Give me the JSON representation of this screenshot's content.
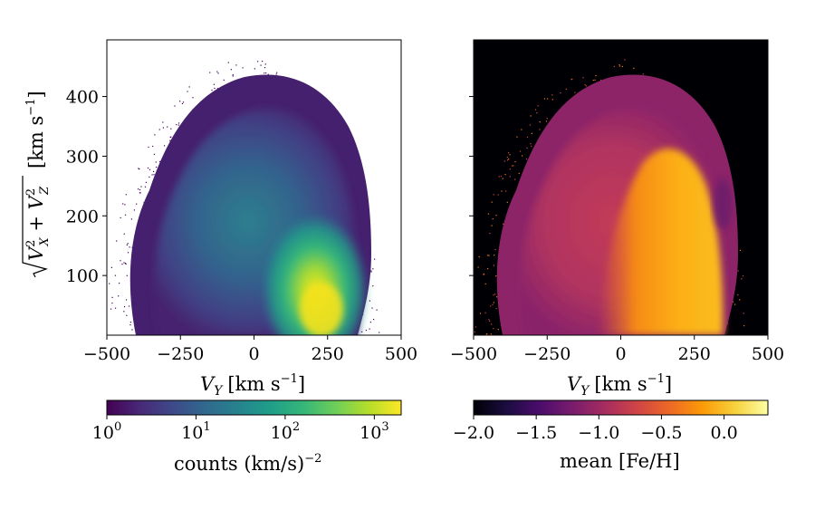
{
  "chart_data": [
    {
      "type": "heatmap",
      "panel": "left",
      "description_value": "2D histogram density",
      "xlabel": "V_Y [km s^-1]",
      "xlabel_main": "V",
      "xlabel_sub": "Y",
      "xlabel_units": "[km s",
      "xlabel_units_exp": "−1",
      "xlabel_units_close": "]",
      "ylabel": "sqrt(V_X^2 + V_Z^2) [km s^-1]",
      "ylabel_units": "[km s",
      "ylabel_units_exp": "−1",
      "ylabel_units_close": "]",
      "xlim": [
        -500,
        500
      ],
      "ylim": [
        0,
        495
      ],
      "xticks": [
        -500,
        -250,
        0,
        250,
        500
      ],
      "xtick_labels": [
        "−500",
        "−250",
        "0",
        "250",
        "500"
      ],
      "yticks": [
        100,
        200,
        300,
        400
      ],
      "ytick_labels": [
        "100",
        "200",
        "300",
        "400"
      ],
      "peak_counts_location": [
        230,
        50
      ],
      "colormap": "viridis",
      "colorbar": {
        "label": "counts (km/s)",
        "label_exp": "−2",
        "scale": "log",
        "range": [
          1,
          2000
        ],
        "tick_values": [
          1,
          10,
          100,
          1000
        ],
        "tick_base": "10",
        "tick_exponents": [
          "0",
          "1",
          "2",
          "3"
        ]
      }
    },
    {
      "type": "heatmap",
      "panel": "right",
      "description_value": "mean metallicity per bin",
      "xlabel_main": "V",
      "xlabel_sub": "Y",
      "xlabel_units": "[km s",
      "xlabel_units_exp": "−1",
      "xlabel_units_close": "]",
      "xlim": [
        -500,
        500
      ],
      "ylim": [
        0,
        495
      ],
      "xticks": [
        -500,
        -250,
        0,
        250,
        500
      ],
      "xtick_labels": [
        "−500",
        "−250",
        "0",
        "250",
        "500"
      ],
      "yticks": [
        100,
        200,
        300,
        400
      ],
      "colormap": "inferno",
      "background_color": "#000004",
      "colorbar": {
        "label": "mean [Fe/H]",
        "scale": "linear",
        "range": [
          -2.0,
          0.35
        ],
        "tick_values": [
          -2.0,
          -1.5,
          -1.0,
          -0.5,
          0.0
        ],
        "tick_labels": [
          "−2.0",
          "−1.5",
          "−1.0",
          "−0.5",
          "0.0"
        ]
      }
    }
  ],
  "colors": {
    "viridis": [
      "#440154",
      "#482878",
      "#3e4989",
      "#31688e",
      "#26828e",
      "#1f9e89",
      "#35b779",
      "#6ece58",
      "#b5de2b",
      "#fde725"
    ],
    "inferno": [
      "#000004",
      "#1b0c41",
      "#4a0c6b",
      "#781c6d",
      "#a52c60",
      "#cf4446",
      "#ed6925",
      "#fb9b06",
      "#f7d13d",
      "#fcffa4"
    ]
  }
}
